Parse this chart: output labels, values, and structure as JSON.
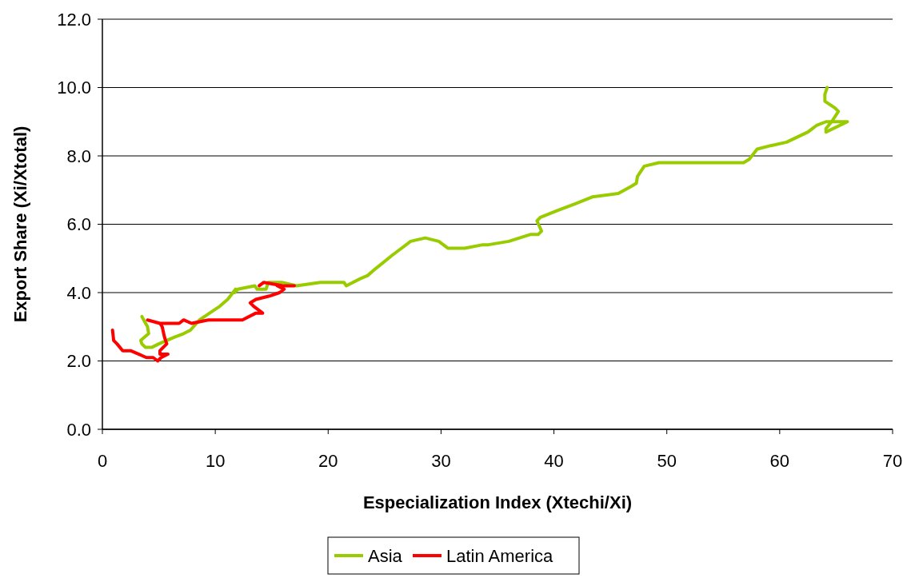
{
  "chart_data": {
    "type": "line",
    "xlabel": "Especialization Index (Xtechi/Xi)",
    "ylabel": "Export Share (Xi/Xtotal)",
    "xlim": [
      0,
      70
    ],
    "xticks": [
      0,
      10,
      20,
      30,
      40,
      50,
      60,
      70
    ],
    "ylim": [
      0,
      12
    ],
    "yticks": [
      {
        "value": 0,
        "label": "0.0"
      },
      {
        "value": 2,
        "label": "2.0"
      },
      {
        "value": 4,
        "label": "4.0"
      },
      {
        "value": 6,
        "label": "6.0"
      },
      {
        "value": 8,
        "label": "8.0"
      },
      {
        "value": 10,
        "label": "10.0"
      },
      {
        "value": 12,
        "label": "12.0"
      }
    ],
    "grid": "y",
    "legend": "bottom",
    "marker": "none",
    "line_style": "solid",
    "series": [
      {
        "name": "Asia",
        "color": "#99cc00",
        "x": [
          3.5,
          4.0,
          4.1,
          3.4,
          3.5,
          3.8,
          4.4,
          5.0,
          6.4,
          7.2,
          7.8,
          8.6,
          9.5,
          10.4,
          11.1,
          11.8,
          11.7,
          12.0,
          13.5,
          13.7,
          14.5,
          14.7,
          15.9,
          17.2,
          19.3,
          21.4,
          21.6,
          22.2,
          22.8,
          23.5,
          24.2,
          25.7,
          27.3,
          28.6,
          29.8,
          30.6,
          32.1,
          33.7,
          34.2,
          36.0,
          37.9,
          38.6,
          38.9,
          38.5,
          38.8,
          40.3,
          41.9,
          43.4,
          45.7,
          46.8,
          47.3,
          47.4,
          48.0,
          49.3,
          55.2,
          56.0,
          56.8,
          57.3,
          58.0,
          59.2,
          60.6,
          62.5,
          63.3,
          64.1,
          64.9,
          66.0,
          64.1,
          64.1,
          64.6,
          65.2,
          64.9,
          64.0,
          64.0,
          64.2
        ],
        "values": [
          3.3,
          3.0,
          2.8,
          2.6,
          2.5,
          2.4,
          2.4,
          2.5,
          2.7,
          2.8,
          2.9,
          3.2,
          3.4,
          3.6,
          3.8,
          4.1,
          4.0,
          4.1,
          4.2,
          4.1,
          4.1,
          4.3,
          4.3,
          4.2,
          4.3,
          4.3,
          4.2,
          4.3,
          4.4,
          4.5,
          4.7,
          5.1,
          5.5,
          5.6,
          5.5,
          5.3,
          5.3,
          5.4,
          5.4,
          5.5,
          5.7,
          5.7,
          5.8,
          6.1,
          6.2,
          6.4,
          6.6,
          6.8,
          6.9,
          7.1,
          7.2,
          7.4,
          7.7,
          7.8,
          7.8,
          7.8,
          7.8,
          7.9,
          8.2,
          8.3,
          8.4,
          8.7,
          8.9,
          9.0,
          9.0,
          9.0,
          8.7,
          8.8,
          9.0,
          9.3,
          9.4,
          9.6,
          9.8,
          10.0
        ]
      },
      {
        "name": "Latin America",
        "color": "#ff0000",
        "x": [
          0.9,
          1.0,
          1.3,
          1.8,
          2.5,
          3.2,
          3.9,
          4.5,
          4.9,
          5.2,
          5.8,
          5.1,
          5.1,
          5.7,
          5.5,
          5.3,
          5.1,
          4.0,
          5.1,
          6.8,
          7.2,
          7.9,
          9.4,
          10.8,
          12.4,
          13.6,
          14.2,
          13.4,
          13.1,
          13.6,
          14.8,
          15.7,
          16.1,
          15.5,
          17.0,
          16.0,
          14.3,
          13.9
        ],
        "values": [
          2.9,
          2.6,
          2.5,
          2.3,
          2.3,
          2.2,
          2.1,
          2.1,
          2.0,
          2.1,
          2.2,
          2.2,
          2.3,
          2.5,
          2.7,
          3.0,
          3.1,
          3.2,
          3.1,
          3.1,
          3.2,
          3.1,
          3.2,
          3.2,
          3.2,
          3.4,
          3.4,
          3.6,
          3.7,
          3.8,
          3.9,
          4.0,
          4.1,
          4.2,
          4.2,
          4.2,
          4.3,
          4.2
        ]
      }
    ]
  }
}
